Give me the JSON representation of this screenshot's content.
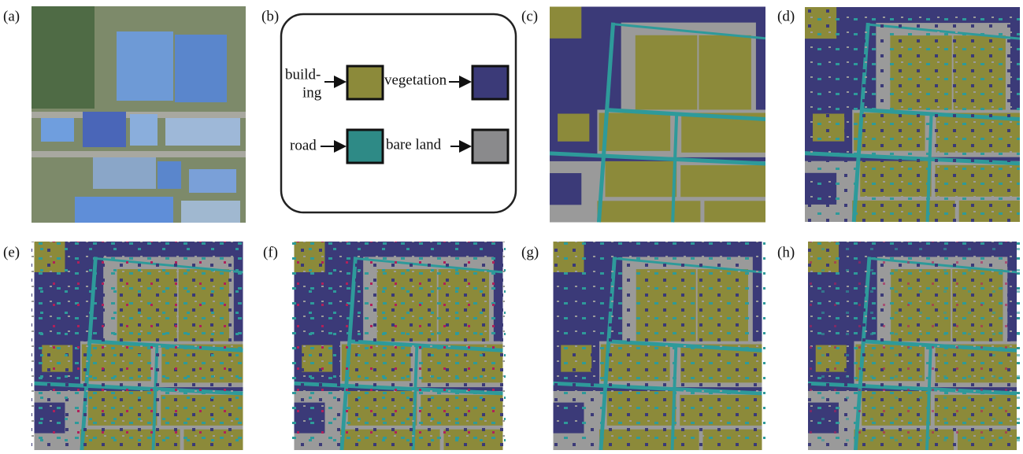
{
  "panels": [
    "(a)",
    "(b)",
    "(c)",
    "(d)",
    "(e)",
    "(f)",
    "(g)",
    "(h)"
  ],
  "legend": {
    "items": [
      {
        "lines": [
          "build-",
          "ing"
        ]
      },
      {
        "lines": [
          "vegetation"
        ]
      },
      {
        "lines": [
          "road"
        ]
      },
      {
        "lines": [
          "bare land"
        ]
      }
    ]
  }
}
